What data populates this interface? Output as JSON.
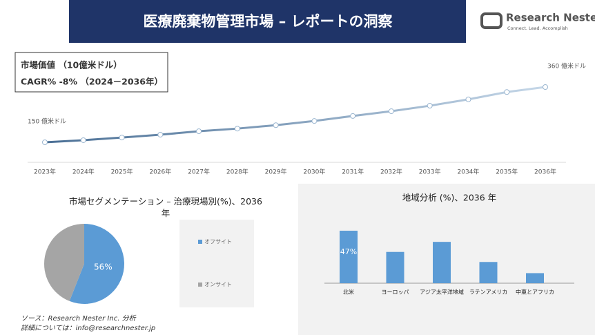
{
  "header": {
    "title": "医療廃棄物管理市場 – レポートの洞察",
    "logo_name": "Research Nester",
    "logo_tagline": "Connect. Lead. Accomplish"
  },
  "info_box": {
    "line1": "市場価値 （10億米ドル）",
    "line2": "CAGR% -8% （2024－2036年）"
  },
  "chart_data": [
    {
      "type": "line",
      "color": "#5b87ad",
      "categories": [
        "2023年",
        "2024年",
        "2025年",
        "2026年",
        "2027年",
        "2028年",
        "2029年",
        "2030年",
        "2031年",
        "2032年",
        "2033年",
        "2034年",
        "2035年",
        "2036年"
      ],
      "values": [
        150,
        158,
        168,
        179,
        192,
        202,
        215,
        231,
        250,
        268,
        289,
        313,
        341,
        360
      ],
      "value_labels": [
        "150 億米ドル",
        null,
        null,
        null,
        null,
        null,
        null,
        null,
        null,
        null,
        null,
        null,
        null,
        "360 億米ドル"
      ]
    },
    {
      "type": "pie",
      "title": "市場セグメンテーション – 治療現場別(%)、2036年",
      "categories": [
        "オフサイト",
        "オンサイト"
      ],
      "values": [
        56,
        44
      ],
      "value_labels": [
        "56%",
        null
      ],
      "colors": [
        "#5b9bd5",
        "#a5a5a5"
      ]
    },
    {
      "type": "bar",
      "title": "地域分析 (%)、2036 年",
      "color": "#5b9bd5",
      "categories": [
        "北米",
        "ヨーロッパ",
        "アジア太平洋地域",
        "ラテンアメリカ",
        "中東とアフリカ"
      ],
      "values": [
        47,
        28,
        37,
        19,
        9
      ],
      "value_labels": [
        "47%",
        null,
        null,
        null,
        null
      ]
    }
  ],
  "footer": {
    "source": "ソース：Research Nester Inc. 分析",
    "contact": "詳細については：info@researchnester.jp"
  }
}
